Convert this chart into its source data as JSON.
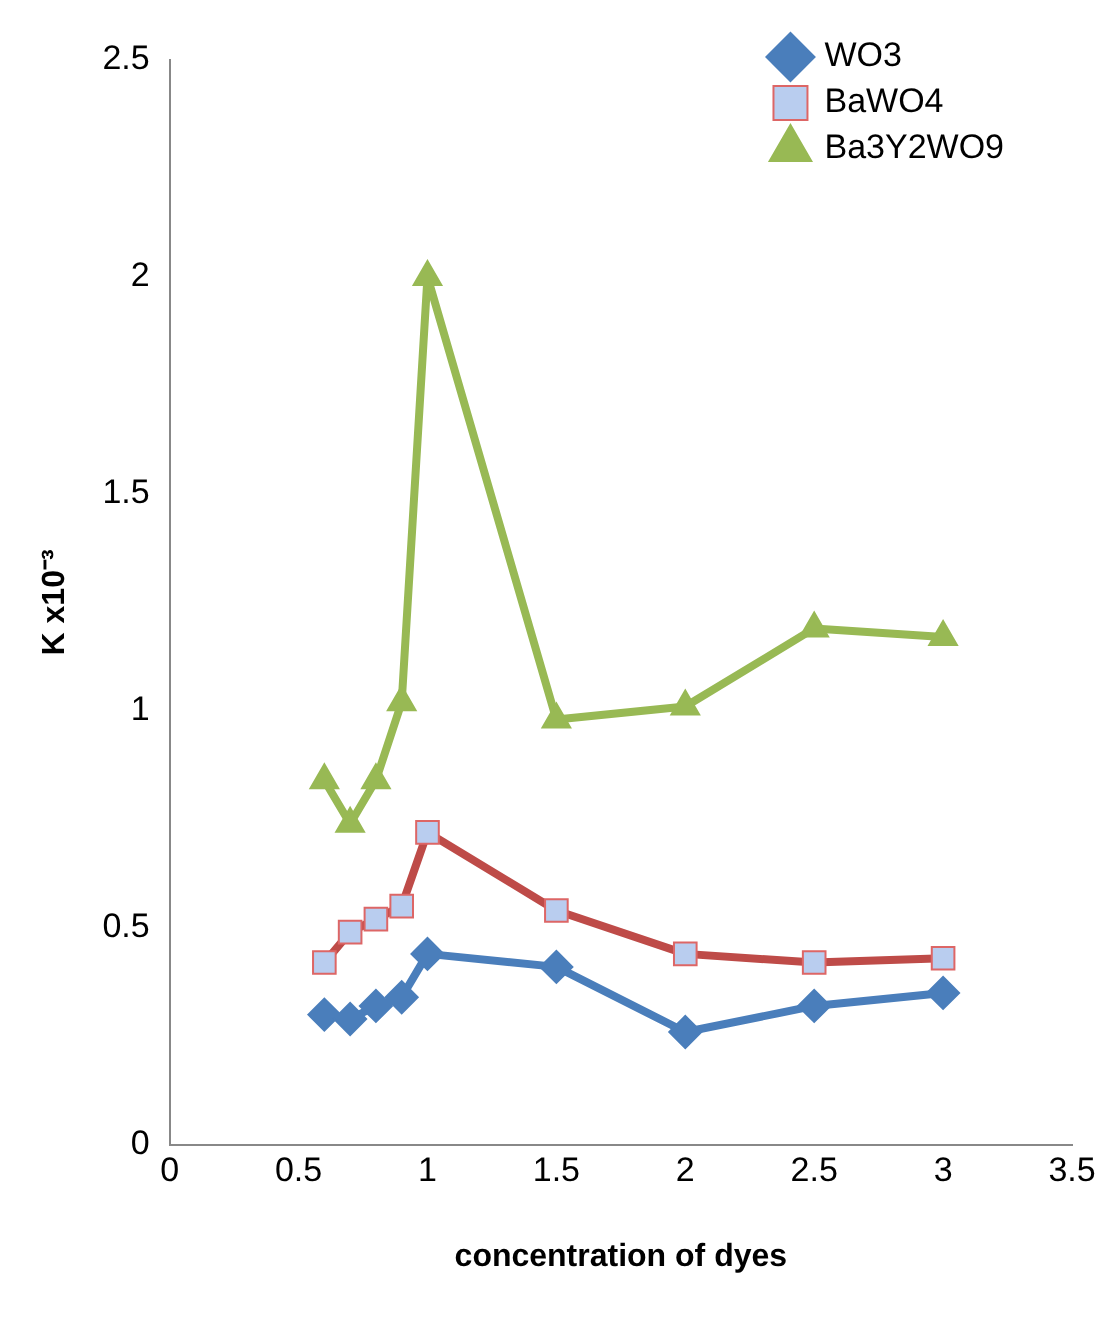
{
  "chart_data": {
    "type": "line",
    "xlabel": "concentration of dyes",
    "ylabel": "K x10⁻³",
    "xlim": [
      0,
      3.5
    ],
    "xticks": [
      0,
      0.5,
      1,
      1.5,
      2,
      2.5,
      3,
      3.5
    ],
    "ylim": [
      0,
      2.5
    ],
    "yticks": [
      0,
      0.5,
      1,
      1.5,
      2,
      2.5
    ],
    "grid": false,
    "legend": "top right",
    "line_style": "solid",
    "x": [
      0.6,
      0.7,
      0.8,
      0.9,
      1,
      1.5,
      2,
      2.5,
      3
    ],
    "series": [
      {
        "name": "WO3",
        "color": "#4a7ebb",
        "marker": "diamond",
        "values": [
          0.3,
          0.29,
          0.32,
          0.34,
          0.44,
          0.41,
          0.26,
          0.32,
          0.35
        ]
      },
      {
        "name": "BaWO4",
        "color": "#be4b48",
        "marker": "square",
        "values": [
          0.42,
          0.49,
          0.52,
          0.55,
          0.72,
          0.54,
          0.44,
          0.42,
          0.43
        ]
      },
      {
        "name": "Ba3Y2WO9",
        "color": "#98b954",
        "marker": "triangle",
        "values": [
          0.84,
          0.74,
          0.84,
          1.02,
          2.0,
          0.98,
          1.01,
          1.19,
          1.17
        ]
      }
    ]
  }
}
